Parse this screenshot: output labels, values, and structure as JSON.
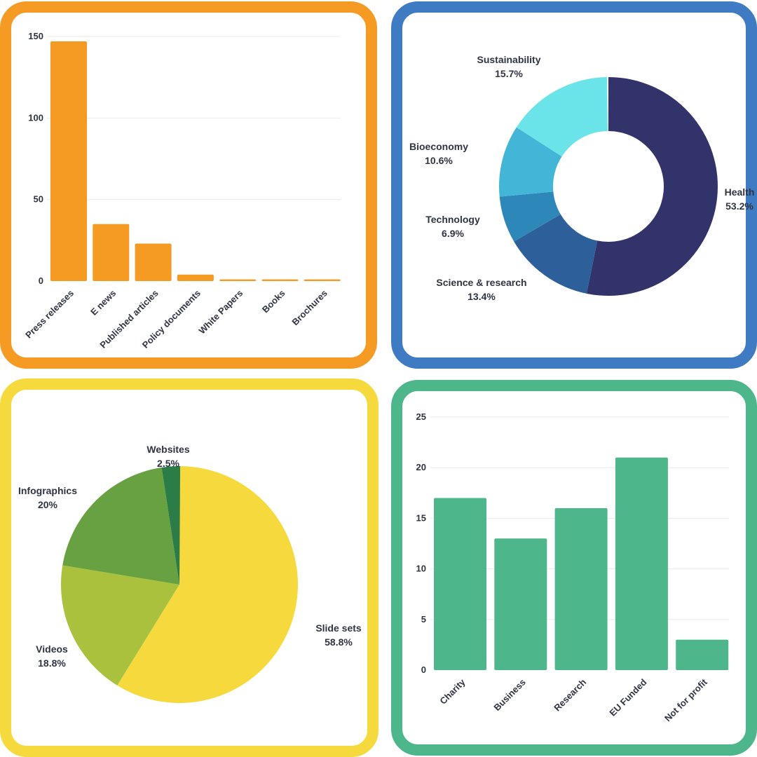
{
  "colors": {
    "orange": "#f59a23",
    "blue_border": "#3f7bc2",
    "yellow_border": "#f6da3d",
    "green": "#4db68b",
    "text": "#2f3443"
  },
  "chart_data": [
    {
      "type": "bar",
      "title": "",
      "xlabel": "",
      "ylabel": "",
      "categories": [
        "Press releases",
        "E news",
        "Published articles",
        "Policy documents",
        "White Papers",
        "Books",
        "Brochures"
      ],
      "values": [
        147,
        35,
        23,
        4,
        1,
        1,
        1
      ],
      "ylim": [
        0,
        150
      ],
      "yticks": [
        0,
        50,
        100,
        150
      ],
      "color": "#f59a23",
      "grid": true
    },
    {
      "type": "pie",
      "donut": true,
      "title": "",
      "slices": [
        {
          "label": "Health",
          "percent": "53.2%",
          "value": 53.2,
          "color": "#32336b"
        },
        {
          "label": "Science & research",
          "percent": "13.4%",
          "value": 13.4,
          "color": "#2d5f9a"
        },
        {
          "label": "Technology",
          "percent": "6.9%",
          "value": 6.9,
          "color": "#2d88b9"
        },
        {
          "label": "Bioeconomy",
          "percent": "10.6%",
          "value": 10.6,
          "color": "#43b6d8"
        },
        {
          "label": "Sustainability",
          "percent": "15.7%",
          "value": 15.7,
          "color": "#6ae4e8"
        }
      ]
    },
    {
      "type": "pie",
      "donut": false,
      "title": "",
      "slices": [
        {
          "label": "Slide sets",
          "percent": "58.8%",
          "value": 58.8,
          "color": "#f6da3d"
        },
        {
          "label": "Videos",
          "percent": "18.8%",
          "value": 18.8,
          "color": "#a9c13d"
        },
        {
          "label": "Infographics",
          "percent": "20%",
          "value": 20,
          "color": "#68a141"
        },
        {
          "label": "Websites",
          "percent": "2.5%",
          "value": 2.5,
          "color": "#2b7c47"
        }
      ]
    },
    {
      "type": "bar",
      "title": "",
      "xlabel": "",
      "ylabel": "",
      "categories": [
        "Charity",
        "Business",
        "Research",
        "EU Funded",
        "Not for profit"
      ],
      "values": [
        17,
        13,
        16,
        21,
        3
      ],
      "ylim": [
        0,
        25
      ],
      "yticks": [
        0,
        5,
        10,
        15,
        20,
        25
      ],
      "color": "#4db68b",
      "grid": true
    }
  ]
}
